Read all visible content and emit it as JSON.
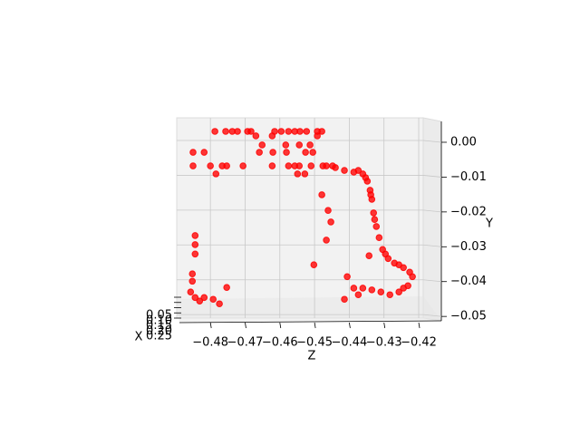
{
  "chart_data": {
    "type": "scatter3d",
    "xlabel": "X",
    "ylabel": "Y",
    "zlabel": "Z",
    "color": "#ff0000",
    "grid": true,
    "xlim": [
      0.05,
      0.25
    ],
    "xticks": [
      0.05,
      {
        "value": 0.1,
        "label": "0.10"
      },
      0.15,
      {
        "value": 0.2,
        "label": "0.20"
      },
      0.25
    ],
    "ylim": [
      -0.051,
      0.0065
    ],
    "yticks": [
      {
        "value": 0.0,
        "label": "0.00"
      },
      {
        "value": -0.01,
        "label": "−0.01"
      },
      {
        "value": -0.02,
        "label": "−0.02"
      },
      {
        "value": -0.03,
        "label": "−0.03"
      },
      {
        "value": -0.04,
        "label": "−0.04"
      },
      {
        "value": -0.05,
        "label": "−0.05"
      }
    ],
    "zlim": [
      -0.4897,
      -0.4187
    ],
    "zticks": [
      {
        "value": -0.48,
        "label": "−0.48"
      },
      {
        "value": -0.47,
        "label": "−0.47"
      },
      {
        "value": -0.46,
        "label": "−0.46"
      },
      {
        "value": -0.45,
        "label": "−0.45"
      },
      {
        "value": -0.44,
        "label": "−0.44"
      },
      {
        "value": -0.43,
        "label": "−0.43"
      },
      {
        "value": -0.42,
        "label": "−0.42"
      }
    ],
    "z": [
      -0.4787,
      -0.4756,
      -0.4737,
      -0.4722,
      -0.4693,
      -0.4683,
      -0.4615,
      -0.4596,
      -0.4575,
      -0.4557,
      -0.4542,
      -0.4523,
      -0.4492,
      -0.4479,
      -0.4669,
      -0.4651,
      -0.4622,
      -0.4583,
      -0.4544,
      -0.4513,
      -0.4492,
      -0.485,
      -0.4818,
      -0.4659,
      -0.462,
      -0.4581,
      -0.4526,
      -0.4505,
      -0.485,
      -0.48,
      -0.4766,
      -0.4753,
      -0.4706,
      -0.4622,
      -0.4575,
      -0.4557,
      -0.4544,
      -0.451,
      -0.4476,
      -0.4466,
      -0.4448,
      -0.4784,
      -0.4549,
      -0.4528,
      -0.444,
      -0.4414,
      -0.4387,
      -0.4361,
      -0.4348,
      -0.434,
      -0.4335,
      -0.433,
      -0.4322,
      -0.4314,
      -0.4304,
      -0.4288,
      -0.427,
      -0.4244,
      -0.4218,
      -0.4231,
      -0.4257,
      -0.4283,
      -0.4309,
      -0.4335,
      -0.4361,
      -0.4387,
      -0.4414,
      -0.4374,
      -0.4343,
      -0.4461,
      -0.4453,
      -0.4466,
      -0.4479,
      -0.4502,
      -0.4406,
      -0.4374,
      -0.4353,
      -0.4338,
      -0.4327,
      -0.4296,
      -0.4257,
      -0.4226,
      -0.4244,
      -0.4844,
      -0.4844,
      -0.4844,
      -0.4852,
      -0.4852,
      -0.4857,
      -0.4844,
      -0.4818,
      -0.4792,
      -0.4774,
      -0.4831,
      -0.4753
    ],
    "y": [
      0.0026,
      0.0026,
      0.0026,
      0.0026,
      0.0026,
      0.0026,
      0.0026,
      0.0026,
      0.0026,
      0.0026,
      0.0026,
      0.0026,
      0.0026,
      0.0026,
      0.0013,
      -0.0013,
      0.0013,
      -0.0013,
      -0.0013,
      -0.0013,
      0.0013,
      -0.0034,
      -0.0034,
      -0.0034,
      -0.0034,
      -0.0034,
      -0.0034,
      -0.0034,
      -0.0073,
      -0.0073,
      -0.0073,
      -0.0073,
      -0.0073,
      -0.0073,
      -0.0073,
      -0.0073,
      -0.0073,
      -0.0073,
      -0.0073,
      -0.0073,
      -0.0073,
      -0.0096,
      -0.0096,
      -0.0096,
      -0.0078,
      -0.0086,
      -0.0091,
      -0.0096,
      -0.0117,
      -0.0143,
      -0.0169,
      -0.0208,
      -0.0247,
      -0.0279,
      -0.0313,
      -0.0339,
      -0.0352,
      -0.0365,
      -0.0391,
      -0.0417,
      -0.0435,
      -0.0443,
      -0.0435,
      -0.0429,
      -0.0424,
      -0.0424,
      -0.0456,
      -0.0443,
      -0.0331,
      -0.0201,
      -0.0234,
      -0.0286,
      -0.0156,
      -0.0357,
      -0.0391,
      -0.0086,
      -0.0107,
      -0.0156,
      -0.0227,
      -0.0326,
      -0.0357,
      -0.0378,
      -0.0424,
      -0.0273,
      -0.0299,
      -0.0326,
      -0.0383,
      -0.0404,
      -0.0435,
      -0.0451,
      -0.0451,
      -0.0456,
      -0.0469,
      -0.0461,
      -0.0422
    ]
  }
}
